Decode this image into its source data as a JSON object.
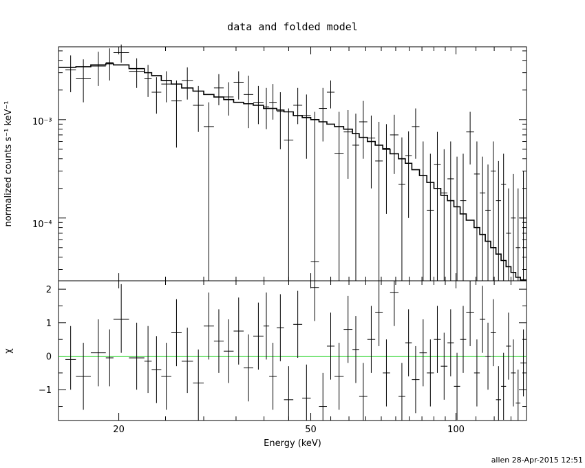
{
  "chart_data": {
    "type": "scatter",
    "title": "data and folded model",
    "xlabel": "Energy (keV)",
    "x_scale": "log",
    "xlim": [
      15,
      140
    ],
    "x_ticks": [
      "20",
      "50",
      "100"
    ],
    "footer": "allen 28-Apr-2015 12:51",
    "panels": {
      "top": {
        "ylabel": "normalized counts s⁻¹ keV⁻¹",
        "y_scale": "log",
        "ylim": [
          2.3e-05,
          0.0055
        ],
        "y_tick_labels": [
          "10⁻³",
          "10⁻⁴"
        ],
        "data_points": [
          [
            15.5,
            16.3,
            0.0032,
            0.0019,
            0.0045
          ],
          [
            16.3,
            17.5,
            0.0026,
            0.0015,
            0.0041
          ],
          [
            17.5,
            18.8,
            0.0035,
            0.0022,
            0.0049
          ],
          [
            18.8,
            19.5,
            0.0038,
            0.0025,
            0.0053
          ],
          [
            19.5,
            21.0,
            0.0048,
            0.0038,
            0.0058
          ],
          [
            21.0,
            22.6,
            0.0031,
            0.0021,
            0.0042
          ],
          [
            22.6,
            23.4,
            0.0026,
            0.0017,
            0.0036
          ],
          [
            23.4,
            24.5,
            0.0019,
            0.00115,
            0.0027
          ],
          [
            24.5,
            25.7,
            0.0023,
            0.0015,
            0.0031
          ],
          [
            25.7,
            27.0,
            0.00155,
            0.00052,
            0.0025
          ],
          [
            27.0,
            28.5,
            0.0025,
            0.0016,
            0.0034
          ],
          [
            28.5,
            30.0,
            0.0014,
            0.00075,
            0.0022
          ],
          [
            30.0,
            31.5,
            0.00085,
            2.3e-05,
            0.0015
          ],
          [
            31.5,
            33.0,
            0.0021,
            0.0014,
            0.0029
          ],
          [
            33.0,
            34.6,
            0.0017,
            0.0011,
            0.0024
          ],
          [
            34.6,
            36.3,
            0.0024,
            0.0016,
            0.0031
          ],
          [
            36.3,
            38.0,
            0.0018,
            0.00082,
            0.0028
          ],
          [
            38.0,
            39.9,
            0.0015,
            0.0009,
            0.0022
          ],
          [
            39.9,
            41.0,
            0.00135,
            0.0008,
            0.0021
          ],
          [
            41.0,
            42.5,
            0.0015,
            0.001,
            0.0023
          ],
          [
            42.5,
            44.0,
            0.0012,
            0.0005,
            0.0019
          ],
          [
            44.0,
            46.0,
            0.00062,
            2.3e-05,
            0.0013
          ],
          [
            46.0,
            48.0,
            0.0014,
            0.0009,
            0.0021
          ],
          [
            48.0,
            50.0,
            0.0011,
            0.0004,
            0.0018
          ],
          [
            50.0,
            52.0,
            3.6e-05,
            2.3e-05,
            0.0012
          ],
          [
            52.0,
            54.0,
            0.0013,
            0.0006,
            0.0021
          ],
          [
            54.0,
            56.0,
            0.0019,
            0.0013,
            0.0025
          ],
          [
            56.0,
            58.5,
            0.00045,
            2.3e-05,
            0.0012
          ],
          [
            58.5,
            61.0,
            0.00075,
            0.00025,
            0.00125
          ],
          [
            61.0,
            63.0,
            0.00055,
            2.3e-05,
            0.00115
          ],
          [
            63.0,
            65.5,
            0.00095,
            0.0004,
            0.00155
          ],
          [
            65.5,
            68.0,
            0.00065,
            0.0002,
            0.0011
          ],
          [
            68.0,
            70.5,
            0.00038,
            2.3e-05,
            0.00095
          ],
          [
            70.5,
            73.0,
            0.00051,
            0.00011,
            0.0009
          ],
          [
            73.0,
            76.0,
            0.0007,
            0.00028,
            0.00112
          ],
          [
            76.0,
            78.5,
            0.00022,
            2.3e-05,
            0.00066
          ],
          [
            78.5,
            81.0,
            0.00043,
            0.0001,
            0.00076
          ],
          [
            81.0,
            84.0,
            0.00085,
            0.0004,
            0.0013
          ],
          [
            84.0,
            87.0,
            0.00027,
            2.3e-05,
            0.0006
          ],
          [
            87.0,
            90.0,
            0.00012,
            2.3e-05,
            0.00045
          ],
          [
            90.0,
            93.0,
            0.00035,
            2.3e-05,
            0.00075
          ],
          [
            93.0,
            96.0,
            0.00018,
            2.3e-05,
            0.0005
          ],
          [
            96.0,
            99.0,
            0.00025,
            2.3e-05,
            0.0006
          ],
          [
            99.0,
            102.0,
            0.00013,
            2.3e-05,
            0.00042
          ],
          [
            102.0,
            105.0,
            0.00015,
            2.3e-05,
            0.00045
          ],
          [
            105.0,
            109.0,
            0.00075,
            0.00035,
            0.0012
          ],
          [
            109.0,
            112.0,
            0.00028,
            2.3e-05,
            0.0006
          ],
          [
            112.0,
            115.0,
            0.00018,
            2.3e-05,
            0.00042
          ],
          [
            115.0,
            118.0,
            0.00012,
            2.3e-05,
            0.00035
          ],
          [
            118.0,
            121.0,
            0.0003,
            2.3e-05,
            0.0006
          ],
          [
            121.0,
            124.0,
            0.00015,
            2.3e-05,
            0.00038
          ],
          [
            124.0,
            127.0,
            0.00022,
            2.3e-05,
            0.00045
          ],
          [
            127.0,
            130.0,
            7e-05,
            2.3e-05,
            0.0002
          ],
          [
            130.0,
            133.0,
            0.0001,
            2.3e-05,
            0.00028
          ],
          [
            133.0,
            136.0,
            5e-05,
            2.3e-05,
            0.0002
          ],
          [
            136.0,
            140.0,
            0.0001,
            2.3e-05,
            0.0003
          ]
        ],
        "model_steps": [
          [
            15.0,
            0.0034
          ],
          [
            16.3,
            0.00345
          ],
          [
            17.5,
            0.0036
          ],
          [
            18.8,
            0.0037
          ],
          [
            19.5,
            0.0036
          ],
          [
            21.0,
            0.0033
          ],
          [
            22.6,
            0.003
          ],
          [
            23.4,
            0.0028
          ],
          [
            24.5,
            0.0025
          ],
          [
            25.7,
            0.0023
          ],
          [
            27.0,
            0.0021
          ],
          [
            28.5,
            0.00195
          ],
          [
            30.0,
            0.0018
          ],
          [
            31.5,
            0.0017
          ],
          [
            33.0,
            0.0016
          ],
          [
            34.6,
            0.0015
          ],
          [
            36.3,
            0.00145
          ],
          [
            38.0,
            0.0014
          ],
          [
            39.9,
            0.0013
          ],
          [
            42.5,
            0.00125
          ],
          [
            44.0,
            0.0012
          ],
          [
            46.0,
            0.0011
          ],
          [
            48.0,
            0.00105
          ],
          [
            50.0,
            0.001
          ],
          [
            52.0,
            0.00095
          ],
          [
            54.0,
            0.0009
          ],
          [
            56.0,
            0.00085
          ],
          [
            58.5,
            0.0008
          ],
          [
            61.0,
            0.00072
          ],
          [
            63.0,
            0.00066
          ],
          [
            65.5,
            0.0006
          ],
          [
            68.0,
            0.00055
          ],
          [
            70.5,
            0.0005
          ],
          [
            73.0,
            0.00045
          ],
          [
            76.0,
            0.0004
          ],
          [
            78.5,
            0.00036
          ],
          [
            81.0,
            0.00031
          ],
          [
            84.0,
            0.00027
          ],
          [
            87.0,
            0.00023
          ],
          [
            90.0,
            0.0002
          ],
          [
            93.0,
            0.00017
          ],
          [
            96.0,
            0.00015
          ],
          [
            99.0,
            0.00013
          ],
          [
            102.0,
            0.00011
          ],
          [
            105.0,
            9.5e-05
          ],
          [
            109.0,
            8e-05
          ],
          [
            112.0,
            6.8e-05
          ],
          [
            115.0,
            5.8e-05
          ],
          [
            118.0,
            5e-05
          ],
          [
            121.0,
            4.3e-05
          ],
          [
            124.0,
            3.7e-05
          ],
          [
            127.0,
            3.2e-05
          ],
          [
            130.0,
            2.8e-05
          ],
          [
            133.0,
            2.5e-05
          ],
          [
            136.0,
            2.35e-05
          ]
        ]
      },
      "bottom": {
        "ylabel": "χ",
        "ylim": [
          -1.92,
          2.25
        ],
        "y_ticks": [
          -1,
          0,
          1,
          2
        ],
        "y_tick_labels": [
          "−1",
          "0",
          "1",
          "2"
        ],
        "zero_line_color": "#00cc00",
        "data_points": [
          [
            15.5,
            16.3,
            -0.1,
            -1.0,
            0.9
          ],
          [
            16.3,
            17.5,
            -0.6,
            -1.6,
            0.4
          ],
          [
            17.5,
            18.8,
            0.1,
            -0.9,
            1.1
          ],
          [
            18.8,
            19.5,
            -0.05,
            -0.9,
            0.8
          ],
          [
            19.5,
            21.0,
            1.1,
            0.1,
            2.15
          ],
          [
            21.0,
            22.6,
            -0.05,
            -1.0,
            1.0
          ],
          [
            22.6,
            23.4,
            -0.15,
            -1.1,
            0.9
          ],
          [
            23.4,
            24.5,
            -0.4,
            -1.4,
            0.6
          ],
          [
            24.5,
            25.7,
            -0.6,
            -1.6,
            0.4
          ],
          [
            25.7,
            27.0,
            0.7,
            -0.3,
            1.7
          ],
          [
            27.0,
            28.5,
            -0.15,
            -1.1,
            0.85
          ],
          [
            28.5,
            30.0,
            -0.8,
            -1.92,
            0.2
          ],
          [
            30.0,
            31.5,
            0.9,
            -0.1,
            1.9
          ],
          [
            31.5,
            33.0,
            0.45,
            -0.5,
            1.4
          ],
          [
            33.0,
            34.6,
            0.15,
            -0.8,
            1.1
          ],
          [
            34.6,
            36.3,
            0.75,
            -0.25,
            1.75
          ],
          [
            36.3,
            38.0,
            -0.35,
            -1.35,
            0.65
          ],
          [
            38.0,
            39.9,
            0.6,
            -0.4,
            1.6
          ],
          [
            39.9,
            41.0,
            0.9,
            -0.1,
            1.9
          ],
          [
            41.0,
            42.5,
            -0.6,
            -1.6,
            0.4
          ],
          [
            42.5,
            44.0,
            0.85,
            -0.15,
            1.85
          ],
          [
            44.0,
            46.0,
            -1.3,
            -1.92,
            -0.3
          ],
          [
            46.0,
            48.0,
            0.95,
            -0.05,
            1.95
          ],
          [
            48.0,
            50.0,
            -1.25,
            -1.92,
            -0.25
          ],
          [
            50.0,
            52.0,
            2.05,
            1.05,
            2.25
          ],
          [
            52.0,
            54.0,
            -1.5,
            -1.92,
            -0.5
          ],
          [
            54.0,
            56.0,
            0.3,
            -0.7,
            1.3
          ],
          [
            56.0,
            58.5,
            -0.6,
            -1.6,
            0.4
          ],
          [
            58.5,
            61.0,
            0.8,
            -0.2,
            1.8
          ],
          [
            61.0,
            63.0,
            0.2,
            -0.8,
            1.2
          ],
          [
            63.0,
            65.5,
            -1.2,
            -1.92,
            -0.2
          ],
          [
            65.5,
            68.0,
            0.5,
            -0.5,
            1.5
          ],
          [
            68.0,
            70.5,
            1.3,
            0.3,
            2.25
          ],
          [
            70.5,
            73.0,
            -0.5,
            -1.5,
            0.5
          ],
          [
            73.0,
            76.0,
            1.9,
            0.9,
            2.25
          ],
          [
            76.0,
            78.5,
            -1.2,
            -1.92,
            -0.2
          ],
          [
            78.5,
            81.0,
            0.4,
            -0.6,
            1.4
          ],
          [
            81.0,
            84.0,
            -0.7,
            -1.7,
            0.3
          ],
          [
            84.0,
            87.0,
            0.1,
            -0.9,
            1.1
          ],
          [
            87.0,
            90.0,
            -0.5,
            -1.5,
            0.5
          ],
          [
            90.0,
            93.0,
            0.5,
            -0.5,
            1.5
          ],
          [
            93.0,
            96.0,
            -0.3,
            -1.3,
            0.7
          ],
          [
            96.0,
            99.0,
            0.4,
            -0.6,
            1.4
          ],
          [
            99.0,
            102.0,
            -0.9,
            -1.9,
            0.1
          ],
          [
            102.0,
            105.0,
            0.5,
            -0.5,
            1.5
          ],
          [
            105.0,
            109.0,
            1.3,
            0.3,
            2.25
          ],
          [
            109.0,
            112.0,
            -0.5,
            -1.5,
            0.5
          ],
          [
            112.0,
            115.0,
            1.1,
            0.1,
            2.1
          ],
          [
            115.0,
            118.0,
            0.0,
            -1.0,
            1.0
          ],
          [
            118.0,
            121.0,
            0.7,
            -0.3,
            1.7
          ],
          [
            121.0,
            124.0,
            -1.3,
            -1.92,
            -0.3
          ],
          [
            124.0,
            127.0,
            -0.9,
            -1.9,
            0.1
          ],
          [
            127.0,
            130.0,
            0.3,
            -0.7,
            1.3
          ],
          [
            130.0,
            133.0,
            -0.5,
            -1.5,
            0.5
          ],
          [
            133.0,
            136.0,
            -1.4,
            -1.92,
            -0.4
          ],
          [
            136.0,
            140.0,
            -0.2,
            -1.2,
            0.8
          ]
        ]
      }
    }
  }
}
